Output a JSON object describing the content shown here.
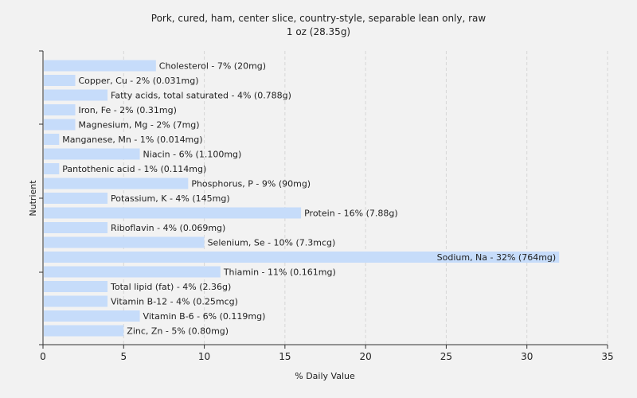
{
  "chart_data": {
    "type": "bar",
    "orientation": "horizontal",
    "title": "Pork, cured, ham, center slice, country-style, separable lean only, raw",
    "subtitle": "1 oz (28.35g)",
    "xlabel": "% Daily Value",
    "ylabel": "Nutrient",
    "xlim": [
      0,
      35
    ],
    "xticks": [
      0,
      5,
      10,
      15,
      20,
      25,
      30,
      35
    ],
    "grid": true,
    "bar_color": "#c6dcfa",
    "categories": [
      "Cholesterol",
      "Copper, Cu",
      "Fatty acids, total saturated",
      "Iron, Fe",
      "Magnesium, Mg",
      "Manganese, Mn",
      "Niacin",
      "Pantothenic acid",
      "Phosphorus, P",
      "Potassium, K",
      "Protein",
      "Riboflavin",
      "Selenium, Se",
      "Sodium, Na",
      "Thiamin",
      "Total lipid (fat)",
      "Vitamin B-12",
      "Vitamin B-6",
      "Zinc, Zn"
    ],
    "values": [
      7,
      2,
      4,
      2,
      2,
      1,
      6,
      1,
      9,
      4,
      16,
      4,
      10,
      32,
      11,
      4,
      4,
      6,
      5
    ],
    "labels": [
      "Cholesterol - 7% (20mg)",
      "Copper, Cu - 2% (0.031mg)",
      "Fatty acids, total saturated - 4% (0.788g)",
      "Iron, Fe - 2% (0.31mg)",
      "Magnesium, Mg - 2% (7mg)",
      "Manganese, Mn - 1% (0.014mg)",
      "Niacin - 6% (1.100mg)",
      "Pantothenic acid - 1% (0.114mg)",
      "Phosphorus, P - 9% (90mg)",
      "Potassium, K - 4% (145mg)",
      "Protein - 16% (7.88g)",
      "Riboflavin - 4% (0.069mg)",
      "Selenium, Se - 10% (7.3mcg)",
      "Sodium, Na - 32% (764mg)",
      "Thiamin - 11% (0.161mg)",
      "Total lipid (fat) - 4% (2.36g)",
      "Vitamin B-12 - 4% (0.25mcg)",
      "Vitamin B-6 - 6% (0.119mg)",
      "Zinc, Zn - 5% (0.80mg)"
    ]
  }
}
